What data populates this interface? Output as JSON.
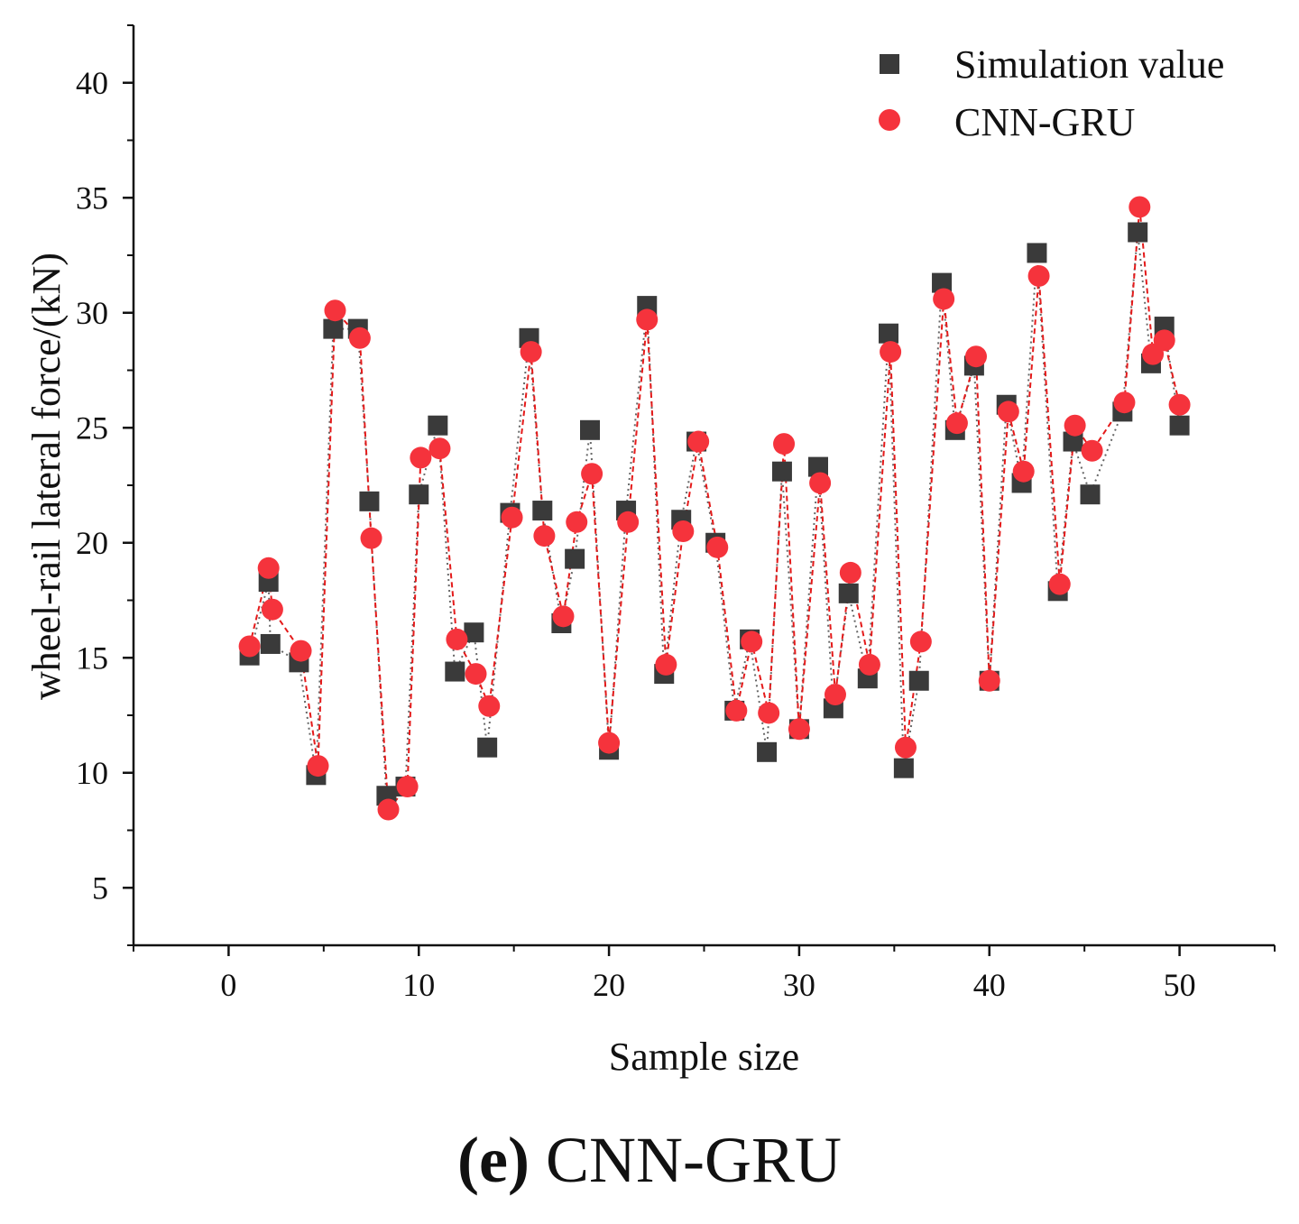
{
  "chart_data": {
    "type": "scatter",
    "title": "",
    "caption_letter": "(e)",
    "caption_text": "CNN-GRU",
    "xlabel": "Sample size",
    "ylabel": "wheel-rail lateral force/(kN)",
    "xlim": [
      -5,
      55
    ],
    "ylim": [
      2.5,
      42.5
    ],
    "xticks": [
      0,
      10,
      20,
      30,
      40,
      50
    ],
    "yticks": [
      5,
      10,
      15,
      20,
      25,
      30,
      35,
      40
    ],
    "xtick_labels": [
      "0",
      "10",
      "20",
      "30",
      "40",
      "50"
    ],
    "ytick_labels": [
      "5",
      "10",
      "15",
      "20",
      "25",
      "30",
      "35",
      "40"
    ],
    "grid": false,
    "legend_position": "top-right",
    "series": [
      {
        "name": "Simulation value",
        "marker": "square",
        "color": "#3a3a3a",
        "line_color": "#666666",
        "x": [
          1.1,
          2.1,
          2.2,
          3.7,
          4.6,
          5.5,
          6.8,
          7.4,
          8.3,
          9.3,
          10.0,
          11.0,
          11.9,
          12.9,
          13.6,
          14.8,
          15.8,
          16.5,
          17.5,
          18.2,
          19.0,
          20.0,
          20.9,
          22.0,
          22.9,
          23.8,
          24.6,
          25.6,
          26.6,
          27.4,
          28.3,
          29.1,
          30.0,
          31.0,
          31.8,
          32.6,
          33.6,
          34.7,
          35.5,
          36.3,
          37.5,
          38.2,
          39.2,
          40.0,
          40.9,
          41.7,
          42.5,
          43.6,
          44.4,
          45.3,
          47.0,
          47.8,
          48.5,
          49.2,
          50.0
        ],
        "y": [
          15.1,
          18.3,
          15.6,
          14.8,
          9.9,
          29.3,
          29.3,
          21.8,
          9.0,
          9.4,
          22.1,
          25.1,
          14.4,
          16.1,
          11.1,
          21.3,
          28.9,
          21.4,
          16.5,
          19.3,
          24.9,
          11.0,
          21.4,
          30.3,
          14.3,
          21.0,
          24.4,
          20.0,
          12.7,
          15.8,
          10.9,
          23.1,
          11.9,
          23.3,
          12.8,
          17.8,
          14.1,
          29.1,
          10.2,
          14.0,
          31.3,
          24.9,
          27.7,
          14.0,
          26.0,
          22.6,
          32.6,
          17.9,
          24.4,
          22.1,
          25.7,
          33.5,
          27.8,
          29.4,
          25.1
        ]
      },
      {
        "name": "CNN-GRU",
        "marker": "circle",
        "color": "#f5333c",
        "line_color": "#e41a1a",
        "x": [
          1.1,
          2.1,
          2.3,
          3.8,
          4.7,
          5.6,
          6.9,
          7.5,
          8.4,
          9.4,
          10.1,
          11.1,
          12.0,
          13.0,
          13.7,
          14.9,
          15.9,
          16.6,
          17.6,
          18.3,
          19.1,
          20.0,
          21.0,
          22.0,
          23.0,
          23.9,
          24.7,
          25.7,
          26.7,
          27.5,
          28.4,
          29.2,
          30.0,
          31.1,
          31.9,
          32.7,
          33.7,
          34.8,
          35.6,
          36.4,
          37.6,
          38.3,
          39.3,
          40.0,
          41.0,
          41.8,
          42.6,
          43.7,
          44.5,
          45.4,
          47.1,
          47.9,
          48.6,
          49.2,
          50.0
        ],
        "y": [
          15.5,
          18.9,
          17.1,
          15.3,
          10.3,
          30.1,
          28.9,
          20.2,
          8.4,
          9.4,
          23.7,
          24.1,
          15.8,
          14.3,
          12.9,
          21.1,
          28.3,
          20.3,
          16.8,
          20.9,
          23.0,
          11.3,
          20.9,
          29.7,
          14.7,
          20.5,
          24.4,
          19.8,
          12.7,
          15.7,
          12.6,
          24.3,
          11.9,
          22.6,
          13.4,
          18.7,
          14.7,
          28.3,
          11.1,
          15.7,
          30.6,
          25.2,
          28.1,
          14.0,
          25.7,
          23.1,
          31.6,
          18.2,
          25.1,
          24.0,
          26.1,
          34.6,
          28.2,
          28.8,
          26.0
        ]
      }
    ]
  }
}
